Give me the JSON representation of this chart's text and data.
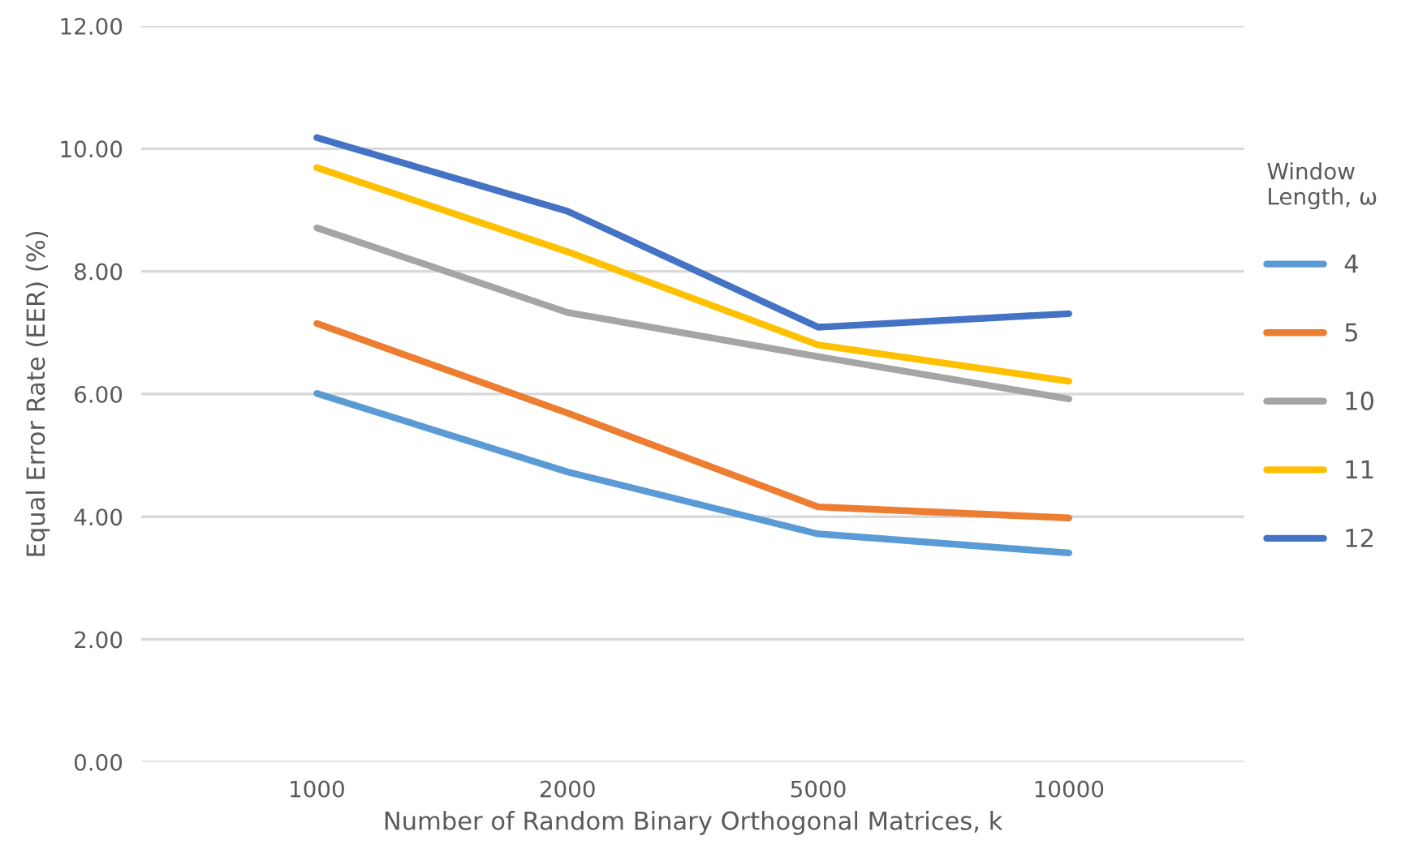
{
  "chart_data": {
    "type": "line",
    "xlabel": "Number of Random Binary Orthogonal Matrices, k",
    "ylabel": "Equal Error Rate (EER) (%)",
    "legend_title": "Window\nLength, ω",
    "categories": [
      "1000",
      "2000",
      "5000",
      "10000"
    ],
    "series": [
      {
        "name": "4",
        "color": "#5b9bd5",
        "values": [
          6.01,
          4.73,
          3.72,
          3.41
        ]
      },
      {
        "name": "5",
        "color": "#ed7d31",
        "values": [
          7.15,
          5.69,
          4.16,
          3.98
        ]
      },
      {
        "name": "10",
        "color": "#a5a5a5",
        "values": [
          8.71,
          7.33,
          6.61,
          5.92
        ]
      },
      {
        "name": "11",
        "color": "#ffc000",
        "values": [
          9.69,
          8.32,
          6.8,
          6.21
        ]
      },
      {
        "name": "12",
        "color": "#4472c4",
        "values": [
          10.18,
          8.98,
          7.09,
          7.31
        ]
      }
    ],
    "ylim": [
      0,
      12
    ],
    "yticks": [
      {
        "value": 0,
        "label": "0.00"
      },
      {
        "value": 2,
        "label": "2.00"
      },
      {
        "value": 4,
        "label": "4.00"
      },
      {
        "value": 6,
        "label": "6.00"
      },
      {
        "value": 8,
        "label": "8.00"
      },
      {
        "value": 10,
        "label": "10.00"
      },
      {
        "value": 12,
        "label": "12.00"
      }
    ],
    "grid": "y",
    "legend": "right"
  }
}
